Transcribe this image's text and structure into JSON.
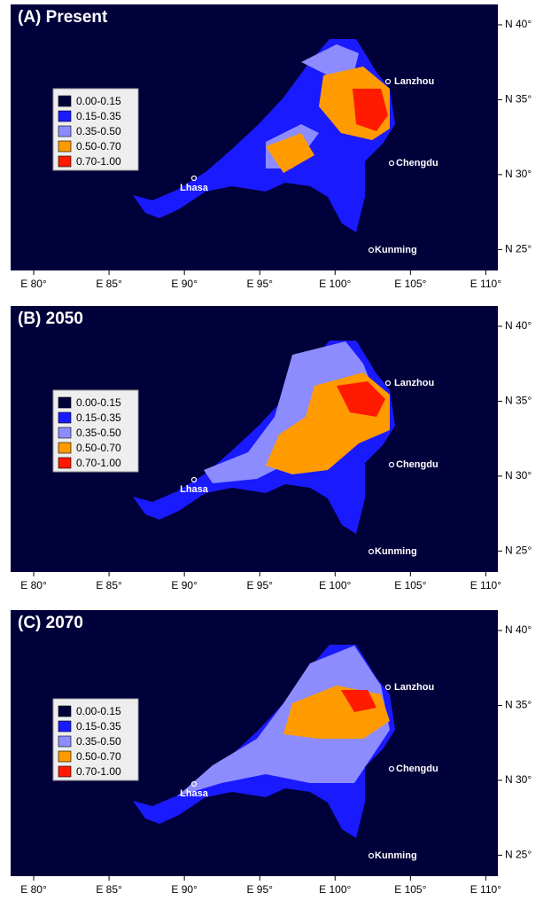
{
  "panels": [
    {
      "title": "(A) Present"
    },
    {
      "title": "(B) 2050"
    },
    {
      "title": "(C) 2070"
    }
  ],
  "legend": [
    {
      "label": "0.00-0.15",
      "color": "#00003a"
    },
    {
      "label": "0.15-0.35",
      "color": "#1a1aff"
    },
    {
      "label": "0.35-0.50",
      "color": "#8c8cff"
    },
    {
      "label": "0.50-0.70",
      "color": "#ff9a00"
    },
    {
      "label": "0.70-1.00",
      "color": "#ff1a00"
    }
  ],
  "cities": [
    "Lanzhou",
    "Chengdu",
    "Kunming",
    "Lhasa"
  ],
  "longitude_ticks": [
    {
      "value": 80,
      "label": "E 80°"
    },
    {
      "value": 85,
      "label": "E 85°"
    },
    {
      "value": 90,
      "label": "E 90°"
    },
    {
      "value": 95,
      "label": "E 95°"
    },
    {
      "value": 100,
      "label": "E 100°"
    },
    {
      "value": 105,
      "label": "E 105°"
    },
    {
      "value": 110,
      "label": "E 110°"
    }
  ],
  "latitude_ticks": [
    {
      "value": 40,
      "label": "N 40°"
    },
    {
      "value": 35,
      "label": "N 35°"
    },
    {
      "value": 30,
      "label": "N 30°"
    },
    {
      "value": 25,
      "label": "N 25°"
    }
  ],
  "lonlim": [
    78.47,
    110.8
  ],
  "latlim": [
    23.6,
    41.36
  ]
}
